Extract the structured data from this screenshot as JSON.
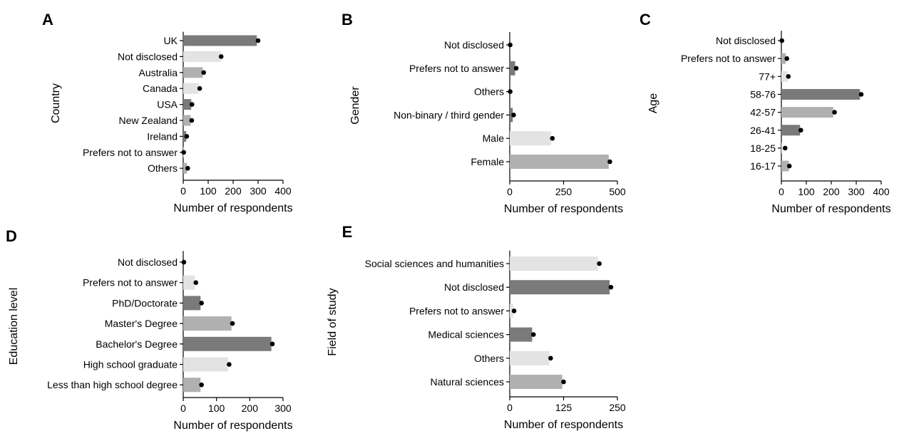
{
  "palette": {
    "dark": "#7a7a7a",
    "mid": "#b0b0b0",
    "light": "#e3e3e3",
    "point": "#000000"
  },
  "chart_data": [
    {
      "panel": "A",
      "type": "bar",
      "orientation": "horizontal",
      "xlabel": "Number of respondents",
      "ylabel": "Country",
      "xlim": [
        0,
        400
      ],
      "xticks": [
        "0",
        "100",
        "200",
        "300",
        "400"
      ],
      "categories": [
        "UK",
        "Not disclosed",
        "Australia",
        "Canada",
        "USA",
        "New Zealand",
        "Ireland",
        "Prefers not to answer",
        "Others"
      ],
      "values": [
        295,
        150,
        78,
        62,
        32,
        30,
        12,
        2,
        15
      ],
      "points": [
        300,
        152,
        82,
        66,
        35,
        34,
        14,
        2,
        18
      ],
      "shades": [
        "dark",
        "light",
        "mid",
        "light",
        "dark",
        "mid",
        "dark",
        "light",
        "mid"
      ]
    },
    {
      "panel": "B",
      "type": "bar",
      "orientation": "horizontal",
      "xlabel": "Number of respondents",
      "ylabel": "Gender",
      "xlim": [
        0,
        500
      ],
      "xticks": [
        "0",
        "250",
        "500"
      ],
      "categories": [
        "Not disclosed",
        "Prefers not to answer",
        "Others",
        "Non-binary / third gender",
        "Male",
        "Female"
      ],
      "values": [
        0,
        25,
        0,
        14,
        192,
        460
      ],
      "points": [
        2,
        30,
        2,
        18,
        198,
        465
      ],
      "shades": [
        "light",
        "dark",
        "light",
        "dark",
        "light",
        "mid"
      ]
    },
    {
      "panel": "C",
      "type": "bar",
      "orientation": "horizontal",
      "xlabel": "Number of respondents",
      "ylabel": "Age",
      "xlim": [
        0,
        400
      ],
      "xticks": [
        "0",
        "100",
        "200",
        "300",
        "400"
      ],
      "categories": [
        "Not disclosed",
        "Prefers not to answer",
        "77+",
        "58-76",
        "42-57",
        "26-41",
        "18-25",
        "16-17"
      ],
      "values": [
        0,
        18,
        25,
        315,
        208,
        75,
        5,
        30
      ],
      "points": [
        2,
        22,
        28,
        320,
        213,
        78,
        15,
        32
      ],
      "shades": [
        "light",
        "mid",
        "light",
        "dark",
        "mid",
        "dark",
        "light",
        "mid"
      ]
    },
    {
      "panel": "D",
      "type": "bar",
      "orientation": "horizontal",
      "xlabel": "Number of respondents",
      "ylabel": "Education level",
      "xlim": [
        0,
        300
      ],
      "xticks": [
        "0",
        "100",
        "200",
        "300"
      ],
      "categories": [
        "Not disclosed",
        "Prefers not to answer",
        "PhD/Doctorate",
        "Master's Degree",
        "Bachelor's Degree",
        "High school graduate",
        "Less than high school degree"
      ],
      "values": [
        0,
        35,
        52,
        145,
        265,
        135,
        52
      ],
      "points": [
        2,
        38,
        55,
        148,
        268,
        138,
        55
      ],
      "shades": [
        "light",
        "light",
        "dark",
        "mid",
        "dark",
        "light",
        "mid"
      ]
    },
    {
      "panel": "E",
      "type": "bar",
      "orientation": "horizontal",
      "xlabel": "Number of respondents",
      "ylabel": "Field of study",
      "xlim": [
        0,
        250
      ],
      "xticks": [
        "0",
        "125",
        "250"
      ],
      "categories": [
        "Social sciences and humanities",
        "Not disclosed",
        "Prefers not to answer",
        "Medical sciences",
        "Others",
        "Natural sciences"
      ],
      "values": [
        205,
        232,
        8,
        52,
        92,
        122
      ],
      "points": [
        208,
        235,
        10,
        55,
        95,
        125
      ],
      "shades": [
        "light",
        "dark",
        "light",
        "dark",
        "light",
        "mid"
      ]
    }
  ]
}
